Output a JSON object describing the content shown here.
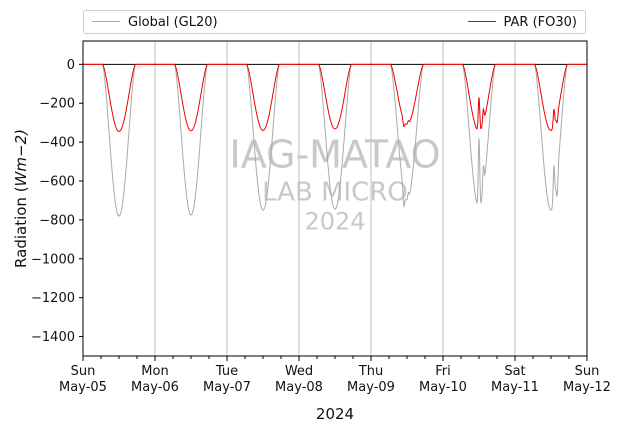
{
  "chart_data": {
    "type": "line",
    "xlabel": "2024",
    "ylabel_prefix": "Radiation (",
    "ylabel_unit": "Wm",
    "ylabel_suffix": "−2)",
    "ylim": [
      -1500,
      120
    ],
    "yticks": [
      0,
      -200,
      -400,
      -600,
      -800,
      -1000,
      -1200,
      -1400
    ],
    "xlim": [
      "2024-05-05 00:00",
      "2024-05-12 00:00"
    ],
    "xticks": [
      {
        "day": "Sun",
        "date": "May-05"
      },
      {
        "day": "Mon",
        "date": "May-06"
      },
      {
        "day": "Tue",
        "date": "May-07"
      },
      {
        "day": "Wed",
        "date": "May-08"
      },
      {
        "day": "Thu",
        "date": "May-09"
      },
      {
        "day": "Fri",
        "date": "May-10"
      },
      {
        "day": "Sat",
        "date": "May-11"
      },
      {
        "day": "Sun",
        "date": "May-12"
      }
    ],
    "vertical_grid": true,
    "zero_line": true,
    "legend_placement": "above plot",
    "series": [
      {
        "name": "Global (GL20)",
        "color": "#aaaaaa",
        "daily": [
          {
            "date": "2024-05-05",
            "sunrise_hour": 6.5,
            "sunset_hour": 17.5,
            "peak": -780,
            "dips": []
          },
          {
            "date": "2024-05-06",
            "sunrise_hour": 6.5,
            "sunset_hour": 17.5,
            "peak": -775,
            "dips": []
          },
          {
            "date": "2024-05-07",
            "sunrise_hour": 6.5,
            "sunset_hour": 17.5,
            "peak": -750,
            "dips": []
          },
          {
            "date": "2024-05-08",
            "sunrise_hour": 6.5,
            "sunset_hour": 17.5,
            "peak": -745,
            "dips": []
          },
          {
            "date": "2024-05-09",
            "sunrise_hour": 6.5,
            "sunset_hour": 17.5,
            "peak": -700,
            "dips": [
              {
                "hour": 11.0,
                "value": -730
              },
              {
                "hour": 12.5,
                "value": -660
              }
            ]
          },
          {
            "date": "2024-05-10",
            "sunrise_hour": 6.5,
            "sunset_hour": 17.5,
            "peak": -740,
            "dips": [
              {
                "hour": 12.0,
                "value": -380
              },
              {
                "hour": 13.5,
                "value": -520
              }
            ]
          },
          {
            "date": "2024-05-11",
            "sunrise_hour": 6.5,
            "sunset_hour": 17.5,
            "peak": -750,
            "dips": [
              {
                "hour": 13.0,
                "value": -520
              },
              {
                "hour": 14.0,
                "value": -680
              }
            ]
          }
        ]
      },
      {
        "name": "PAR (FO30)",
        "color": "#ee0000",
        "daily": [
          {
            "date": "2024-05-05",
            "sunrise_hour": 6.5,
            "sunset_hour": 17.5,
            "peak": -345,
            "dips": []
          },
          {
            "date": "2024-05-06",
            "sunrise_hour": 6.5,
            "sunset_hour": 17.5,
            "peak": -342,
            "dips": []
          },
          {
            "date": "2024-05-07",
            "sunrise_hour": 6.5,
            "sunset_hour": 17.5,
            "peak": -340,
            "dips": []
          },
          {
            "date": "2024-05-08",
            "sunrise_hour": 6.5,
            "sunset_hour": 17.5,
            "peak": -332,
            "dips": []
          },
          {
            "date": "2024-05-09",
            "sunrise_hour": 6.5,
            "sunset_hour": 17.5,
            "peak": -310,
            "dips": [
              {
                "hour": 11.0,
                "value": -320
              },
              {
                "hour": 12.5,
                "value": -290
              }
            ]
          },
          {
            "date": "2024-05-10",
            "sunrise_hour": 6.5,
            "sunset_hour": 17.5,
            "peak": -345,
            "dips": [
              {
                "hour": 12.0,
                "value": -170
              },
              {
                "hour": 13.5,
                "value": -230
              }
            ]
          },
          {
            "date": "2024-05-11",
            "sunrise_hour": 6.5,
            "sunset_hour": 17.5,
            "peak": -340,
            "dips": [
              {
                "hour": 13.0,
                "value": -230
              },
              {
                "hour": 14.0,
                "value": -300
              }
            ]
          }
        ]
      }
    ],
    "watermark": [
      "IAG-MATAO",
      "LAB MICRO",
      "2024"
    ]
  }
}
